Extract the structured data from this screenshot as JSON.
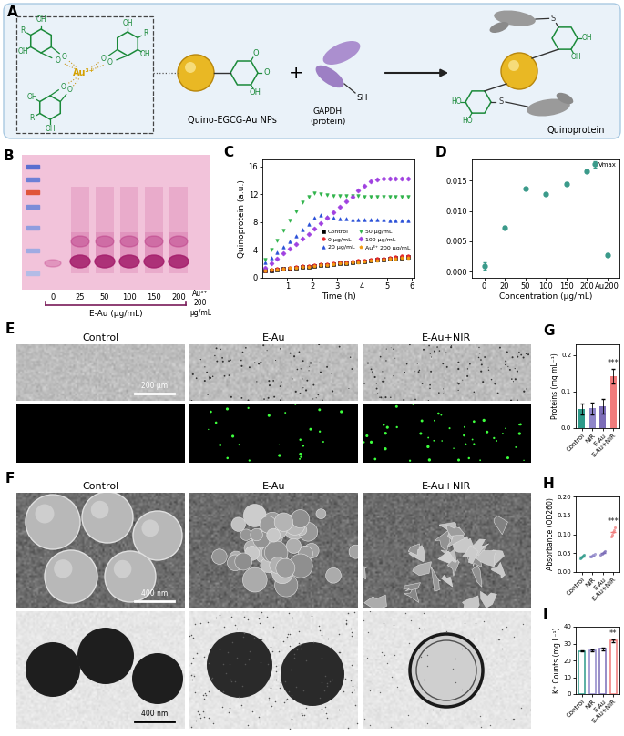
{
  "diagram": {
    "panel": "A",
    "complex": {
      "center": "Au³⁺",
      "ring_labels": [
        "R",
        "OH",
        "OH"
      ],
      "linker": "O"
    },
    "nanoparticle": {
      "label": "Quino-EGCG-Au NPs",
      "quinone_labels": [
        "O",
        "O",
        "OH"
      ]
    },
    "plus": "+",
    "protein": {
      "label": "GAPDH\n(protein)",
      "thiol": "SH"
    },
    "product": {
      "upper_ring": [
        "OH",
        "OH"
      ],
      "lower_ring": [
        "HO",
        "HO"
      ],
      "link": "S",
      "label": "Quinoprotein"
    }
  },
  "gel": {
    "panel": "B",
    "lanes": [
      "0",
      "25",
      "50",
      "100",
      "150",
      "200"
    ],
    "group_label": "E-Au (μg/mL)",
    "control_lane": "Au³⁺\n200\nμg/mL"
  },
  "micrographs": [
    {
      "panel": "E",
      "columns": [
        "Control",
        "E-Au",
        "E-Au+NIR"
      ],
      "scale_bar": "200 μm"
    },
    {
      "panel": "F",
      "columns": [
        "Control",
        "E-Au",
        "E-Au+NIR"
      ],
      "scale_bar": "400 nm"
    }
  ],
  "chart_data": [
    {
      "panel": "C",
      "type": "scatter",
      "x_label": "Time (h)",
      "y_label": "Quinoprotein (a.u.)",
      "x": [
        0.1,
        0.35,
        0.6,
        0.85,
        1.1,
        1.35,
        1.6,
        1.85,
        2.1,
        2.35,
        2.6,
        2.85,
        3.1,
        3.35,
        3.6,
        3.85,
        4.1,
        4.35,
        4.6,
        4.85,
        5.1,
        5.35,
        5.6,
        5.85
      ],
      "xlim": [
        0,
        6.1
      ],
      "xticks": [
        1,
        2,
        3,
        4,
        5,
        6
      ],
      "ylim": [
        0,
        17
      ],
      "yticks": [
        0,
        4,
        8,
        12,
        16
      ],
      "legend": "lower right",
      "series": [
        {
          "name": "Control",
          "color": "#000000",
          "marker": "square",
          "values": [
            1.0,
            1.09,
            1.18,
            1.26,
            1.35,
            1.44,
            1.53,
            1.61,
            1.7,
            1.79,
            1.88,
            1.96,
            2.05,
            2.14,
            2.23,
            2.31,
            2.4,
            2.49,
            2.58,
            2.66,
            2.75,
            2.84,
            2.93,
            3.01
          ]
        },
        {
          "name": "0 μg/mL",
          "color": "#e8262a",
          "marker": "circle",
          "values": [
            1.1,
            1.19,
            1.28,
            1.37,
            1.46,
            1.55,
            1.64,
            1.73,
            1.82,
            1.91,
            2.0,
            2.09,
            2.18,
            2.27,
            2.36,
            2.45,
            2.54,
            2.63,
            2.72,
            2.81,
            2.9,
            2.99,
            3.08,
            3.17
          ]
        },
        {
          "name": "20 μg/mL",
          "color": "#2a50d8",
          "marker": "triangle_up",
          "values": [
            2.2,
            2.9,
            3.6,
            4.4,
            5.2,
            6.0,
            6.9,
            7.7,
            8.6,
            9.0,
            8.8,
            8.6,
            8.5,
            8.5,
            8.4,
            8.4,
            8.4,
            8.4,
            8.4,
            8.4,
            8.3,
            8.3,
            8.3,
            8.3
          ]
        },
        {
          "name": "50 μg/mL",
          "color": "#2fb34a",
          "marker": "triangle_down",
          "values": [
            2.6,
            4.0,
            5.4,
            6.8,
            8.2,
            9.6,
            10.8,
            11.7,
            12.1,
            12.0,
            11.9,
            11.8,
            11.8,
            11.8,
            11.8,
            11.8,
            11.7,
            11.7,
            11.7,
            11.7,
            11.7,
            11.7,
            11.7,
            11.7
          ]
        },
        {
          "name": "100 μg/mL",
          "color": "#a040e0",
          "marker": "diamond",
          "values": [
            1.5,
            2.1,
            2.8,
            3.5,
            4.2,
            4.9,
            5.6,
            6.3,
            7.0,
            7.8,
            8.6,
            9.4,
            10.2,
            11.0,
            11.7,
            12.5,
            13.2,
            13.8,
            14.1,
            14.2,
            14.2,
            14.2,
            14.2,
            14.2
          ]
        },
        {
          "name": "Au³⁺ 200 μg/mL",
          "color": "#f39c12",
          "marker": "pentagon",
          "values": [
            1.05,
            1.13,
            1.21,
            1.29,
            1.38,
            1.46,
            1.54,
            1.62,
            1.71,
            1.79,
            1.87,
            1.95,
            2.04,
            2.12,
            2.2,
            2.28,
            2.37,
            2.45,
            2.53,
            2.61,
            2.7,
            2.78,
            2.86,
            2.94
          ]
        }
      ]
    },
    {
      "panel": "D",
      "type": "scatter",
      "x_label": "Concentration (μg/mL)",
      "categories": [
        "0",
        "20",
        "50",
        "100",
        "150",
        "200",
        "Au200"
      ],
      "ylim": [
        -0.001,
        0.0185
      ],
      "yticks": [
        {
          "value": 0,
          "label": "0.000"
        },
        {
          "value": 0.005,
          "label": "0.005"
        },
        {
          "value": 0.01,
          "label": "0.010"
        },
        {
          "value": 0.015,
          "label": "0.015"
        }
      ],
      "legend": "upper right",
      "series": [
        {
          "name": "Vmax",
          "color": "#3a9a8a",
          "marker": "circle",
          "values": [
            0.001,
            0.0073,
            0.0137,
            0.0128,
            0.0145,
            0.0166,
            0.0028
          ],
          "errors": [
            0.0006,
            0.0002,
            0.0002,
            0.0002,
            0.0002,
            0.0002,
            0.0002
          ]
        }
      ]
    },
    {
      "panel": "G",
      "type": "bar",
      "y_label": "Proteins (mg mL⁻¹)",
      "categories": [
        "Control",
        "NIR",
        "E-Au",
        "E-Au+NIR"
      ],
      "values": [
        0.053,
        0.054,
        0.061,
        0.142
      ],
      "errors": [
        0.015,
        0.017,
        0.02,
        0.02
      ],
      "colors": [
        "#2e9a8a",
        "#8f86c9",
        "#7c6db8",
        "#f07b7b"
      ],
      "ylim": [
        0,
        0.23
      ],
      "yticks": [
        {
          "value": 0,
          "label": "0.0"
        },
        0.1,
        0.2
      ],
      "annotations": [
        {
          "category": "E-Au+NIR",
          "text": "***"
        }
      ]
    },
    {
      "panel": "H",
      "type": "strip",
      "y_label": "Absorbance (OD260)",
      "categories": [
        "Control",
        "NIR",
        "E-Au",
        "E-Au+NIR"
      ],
      "values": [
        0.041,
        0.044,
        0.05,
        0.106
      ],
      "points": [
        [
          0.035,
          0.038,
          0.041,
          0.043,
          0.046
        ],
        [
          0.04,
          0.042,
          0.044,
          0.045,
          0.048
        ],
        [
          0.045,
          0.048,
          0.05,
          0.052,
          0.055
        ],
        [
          0.095,
          0.1,
          0.105,
          0.112,
          0.118
        ]
      ],
      "colors": [
        "#2e9a8a",
        "#8f86c9",
        "#7c6db8",
        "#f07b7b"
      ],
      "ylim": [
        0,
        0.2
      ],
      "yticks": [
        {
          "value": 0,
          "label": "0.00"
        },
        {
          "value": 0.05,
          "label": "0.05"
        },
        {
          "value": 0.1,
          "label": "0.10"
        },
        {
          "value": 0.15,
          "label": "0.15"
        },
        {
          "value": 0.2,
          "label": "0.20"
        }
      ],
      "annotations": [
        {
          "category": "E-Au+NIR",
          "text": "***"
        }
      ]
    },
    {
      "panel": "I",
      "type": "bar",
      "y_label": "K⁺ Counts (mg L⁻¹)",
      "categories": [
        "Control",
        "NIR",
        "E-Au",
        "E-Au+NIR"
      ],
      "values": [
        25.6,
        25.9,
        26.8,
        31.8
      ],
      "errors": [
        0.3,
        0.5,
        0.8,
        0.8
      ],
      "colors": [
        "#2e9a8a",
        "#8f86c9",
        "#7c6db8",
        "#f07b7b"
      ],
      "ylim": [
        0,
        40
      ],
      "yticks": [
        0,
        10,
        20,
        30,
        40
      ],
      "annotations": [
        {
          "category": "E-Au+NIR",
          "text": "**"
        }
      ]
    }
  ]
}
